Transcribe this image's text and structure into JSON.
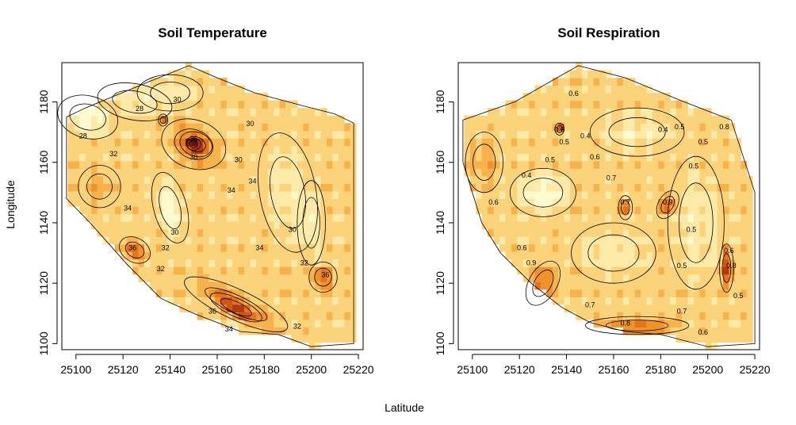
{
  "figure": {
    "xlabel": "Latitude",
    "ylabel": "Longitude"
  },
  "chart_data": [
    {
      "type": "heatmap",
      "title": "Soil Temperature",
      "xlabel": "Latitude",
      "ylabel": "Longitude",
      "xlim": [
        25094,
        25222
      ],
      "ylim": [
        1098,
        1193
      ],
      "xticks": [
        25100,
        25120,
        25140,
        25160,
        25180,
        25200,
        25220
      ],
      "yticks": [
        1100,
        1120,
        1140,
        1160,
        1180
      ],
      "grid": false,
      "palette": [
        "#fffbd0",
        "#fde9a8",
        "#fbd37a",
        "#f7b24b",
        "#f0932a",
        "#e4741c",
        "#d45518",
        "#b03a12",
        "#8a2410",
        "#5e1208"
      ],
      "contour_levels": [
        28,
        30,
        32,
        34,
        36,
        38
      ],
      "contour_labels": [
        {
          "x": 25127,
          "y": 1177,
          "label": "28"
        },
        {
          "x": 25103,
          "y": 1168,
          "label": "28"
        },
        {
          "x": 25116,
          "y": 1162,
          "label": "32"
        },
        {
          "x": 25143,
          "y": 1180,
          "label": "30"
        },
        {
          "x": 25150,
          "y": 1167,
          "label": "36"
        },
        {
          "x": 25150,
          "y": 1161,
          "label": "38"
        },
        {
          "x": 25174,
          "y": 1172,
          "label": "30"
        },
        {
          "x": 25169,
          "y": 1160,
          "label": "30"
        },
        {
          "x": 25175,
          "y": 1153,
          "label": "34"
        },
        {
          "x": 25166,
          "y": 1150,
          "label": "34"
        },
        {
          "x": 25122,
          "y": 1144,
          "label": "34"
        },
        {
          "x": 25142,
          "y": 1136,
          "label": "30"
        },
        {
          "x": 25124,
          "y": 1131,
          "label": "36"
        },
        {
          "x": 25138,
          "y": 1131,
          "label": "32"
        },
        {
          "x": 25136,
          "y": 1124,
          "label": "32"
        },
        {
          "x": 25178,
          "y": 1131,
          "label": "34"
        },
        {
          "x": 25192,
          "y": 1137,
          "label": "30"
        },
        {
          "x": 25197,
          "y": 1126,
          "label": "32"
        },
        {
          "x": 25206,
          "y": 1122,
          "label": "36"
        },
        {
          "x": 25158,
          "y": 1110,
          "label": "36"
        },
        {
          "x": 25165,
          "y": 1104,
          "label": "34"
        },
        {
          "x": 25194,
          "y": 1105,
          "label": "32"
        }
      ]
    },
    {
      "type": "heatmap",
      "title": "Soil Respiration",
      "xlabel": "Latitude",
      "ylabel": "Longitude",
      "xlim": [
        25094,
        25222
      ],
      "ylim": [
        1098,
        1193
      ],
      "xticks": [
        25100,
        25120,
        25140,
        25160,
        25180,
        25200,
        25220
      ],
      "yticks": [
        1100,
        1120,
        1140,
        1160,
        1180
      ],
      "grid": false,
      "palette": [
        "#fffbd0",
        "#fde9a8",
        "#fbd37a",
        "#f7b24b",
        "#f0932a",
        "#e4741c",
        "#d45518",
        "#b03a12",
        "#8a2410",
        "#5e1208"
      ],
      "contour_levels": [
        0.4,
        0.5,
        0.6,
        0.7,
        0.8,
        0.9
      ],
      "contour_labels": [
        {
          "x": 25143,
          "y": 1182,
          "label": "0.6"
        },
        {
          "x": 25137,
          "y": 1170,
          "label": "0.6"
        },
        {
          "x": 25139,
          "y": 1166,
          "label": "0.5"
        },
        {
          "x": 25148,
          "y": 1168,
          "label": "0.4"
        },
        {
          "x": 25152,
          "y": 1161,
          "label": "0.6"
        },
        {
          "x": 25133,
          "y": 1160,
          "label": "0.5"
        },
        {
          "x": 25123,
          "y": 1155,
          "label": "0.4"
        },
        {
          "x": 25159,
          "y": 1154,
          "label": "0.7"
        },
        {
          "x": 25181,
          "y": 1170,
          "label": "0.4"
        },
        {
          "x": 25188,
          "y": 1171,
          "label": "0.5"
        },
        {
          "x": 25207,
          "y": 1171,
          "label": "0.8"
        },
        {
          "x": 25198,
          "y": 1166,
          "label": "0.5"
        },
        {
          "x": 25194,
          "y": 1158,
          "label": "0.5"
        },
        {
          "x": 25165,
          "y": 1146,
          "label": "0.7"
        },
        {
          "x": 25183,
          "y": 1146,
          "label": "0.9"
        },
        {
          "x": 25109,
          "y": 1146,
          "label": "0.6"
        },
        {
          "x": 25121,
          "y": 1131,
          "label": "0.6"
        },
        {
          "x": 25125,
          "y": 1126,
          "label": "0.9"
        },
        {
          "x": 25193,
          "y": 1137,
          "label": "0.5"
        },
        {
          "x": 25209,
          "y": 1130,
          "label": "0.6"
        },
        {
          "x": 25210,
          "y": 1125,
          "label": "0.8"
        },
        {
          "x": 25189,
          "y": 1125,
          "label": "0.5"
        },
        {
          "x": 25150,
          "y": 1112,
          "label": "0.7"
        },
        {
          "x": 25189,
          "y": 1110,
          "label": "0.7"
        },
        {
          "x": 25165,
          "y": 1106,
          "label": "0.8"
        },
        {
          "x": 25198,
          "y": 1103,
          "label": "0.6"
        },
        {
          "x": 25213,
          "y": 1115,
          "label": "0.5"
        }
      ]
    }
  ]
}
